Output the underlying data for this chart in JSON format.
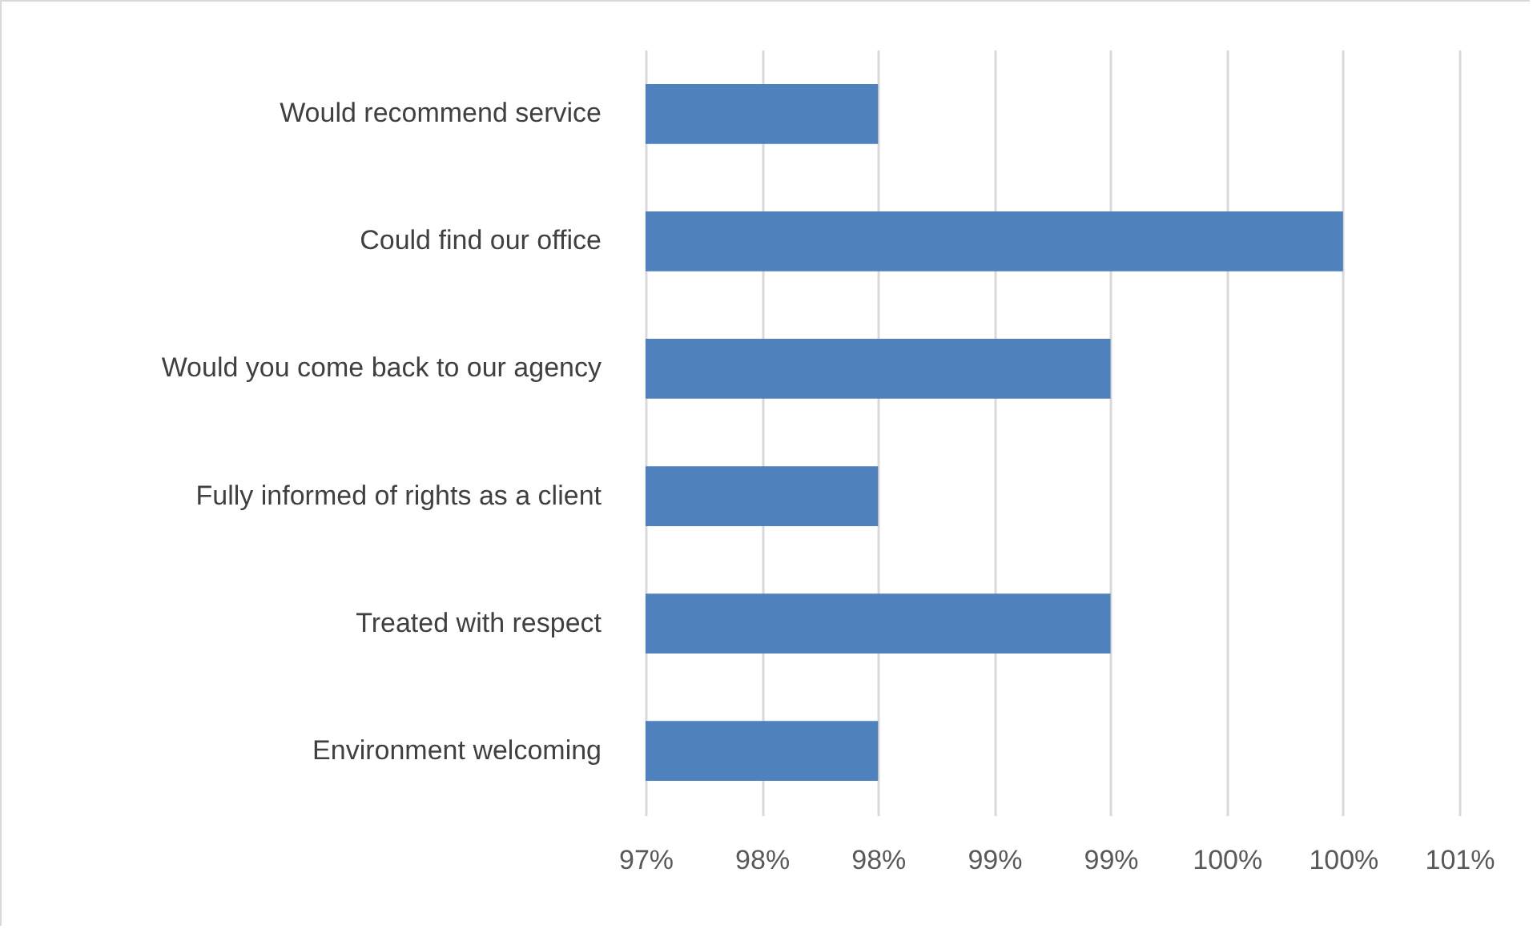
{
  "chart_data": {
    "type": "bar",
    "orientation": "horizontal",
    "categories": [
      "Would recommend service",
      "Could find our office",
      "Would you come back to our agency",
      "Fully informed of rights as a client",
      "Treated with respect",
      "Environment welcoming"
    ],
    "values": [
      98,
      100,
      99,
      98,
      99,
      98
    ],
    "color": "#4f81bd",
    "xlim": [
      97,
      100.5
    ],
    "xticks": [
      {
        "value": 97,
        "label": "97%"
      },
      {
        "value": 97.5,
        "label": "98%"
      },
      {
        "value": 98,
        "label": "98%"
      },
      {
        "value": 98.5,
        "label": "99%"
      },
      {
        "value": 99,
        "label": "99%"
      },
      {
        "value": 99.5,
        "label": "100%"
      },
      {
        "value": 100,
        "label": "100%"
      },
      {
        "value": 100.5,
        "label": "101%"
      }
    ],
    "grid": true
  }
}
